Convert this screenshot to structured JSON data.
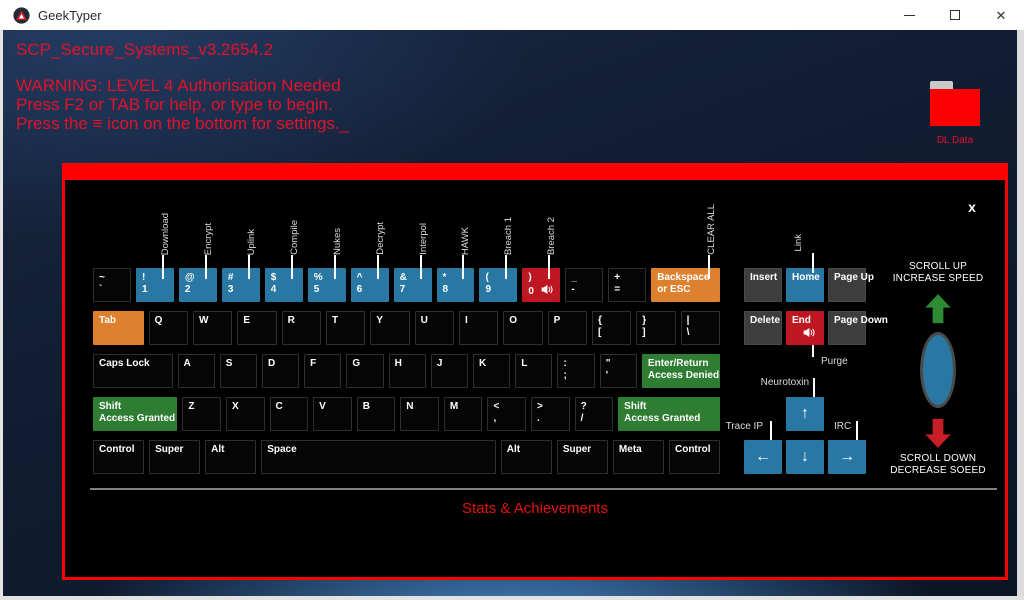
{
  "window": {
    "title": "GeekTyper"
  },
  "screen": {
    "header": "SCP_Secure_Systems_v3.2654.2",
    "warning_lines": [
      "WARNING: LEVEL 4 Authorisation Needed",
      "Press F2 or TAB for help, or type to begin.",
      "Press the ≡ icon on the bottom for settings._"
    ],
    "folder_label": "DL Data"
  },
  "colors": {
    "accent_red": "#ff0000",
    "key_blue": "#2878a3",
    "key_red": "#bf1722",
    "key_orange": "#dd812e",
    "key_green": "#2e7d32",
    "text_red": "#e3112a"
  },
  "overlay": {
    "close_label": "x",
    "stats_title": "Stats & Achievements",
    "scroll": {
      "up_line1": "SCROLL UP",
      "up_line2": "INCREASE SPEED",
      "down_line1": "SCROLL DOWN",
      "down_line2": "DECREASE SOEED"
    },
    "nav_labels": {
      "link": "Link",
      "purge": "Purge",
      "neurotoxin": "Neurotoxin",
      "trace_ip": "Trace IP",
      "irc": "IRC"
    },
    "keyboard": {
      "rows": [
        {
          "keys": [
            {
              "top": "~",
              "bottom": "`",
              "w": 1
            },
            {
              "top": "!",
              "bottom": "1",
              "w": 1,
              "color": "blue",
              "tag": "Download"
            },
            {
              "top": "@",
              "bottom": "2",
              "w": 1,
              "color": "blue",
              "tag": "Encrypt"
            },
            {
              "top": "#",
              "bottom": "3",
              "w": 1,
              "color": "blue",
              "tag": "Uplink"
            },
            {
              "top": "$",
              "bottom": "4",
              "w": 1,
              "color": "blue",
              "tag": "Compile"
            },
            {
              "top": "%",
              "bottom": "5",
              "w": 1,
              "color": "blue",
              "tag": "Nukes"
            },
            {
              "top": "^",
              "bottom": "6",
              "w": 1,
              "color": "blue",
              "tag": "Decrypt"
            },
            {
              "top": "&",
              "bottom": "7",
              "w": 1,
              "color": "blue",
              "tag": "Interpol"
            },
            {
              "top": "*",
              "bottom": "8",
              "w": 1,
              "color": "blue",
              "tag": "HAWK"
            },
            {
              "top": "(",
              "bottom": "9",
              "w": 1,
              "color": "blue",
              "tag": "Breach 1"
            },
            {
              "top": ")",
              "bottom": "0",
              "w": 1,
              "color": "red",
              "tag": "Breach 2",
              "speaker": true
            },
            {
              "top": "_",
              "bottom": "-",
              "w": 1
            },
            {
              "top": "+",
              "bottom": "=",
              "w": 1
            },
            {
              "top": "Backspace",
              "bottom": "or ESC",
              "w": 2,
              "color": "orange",
              "tag": "CLEAR ALL"
            }
          ]
        },
        {
          "keys": [
            {
              "top": "Tab",
              "w": 1.35,
              "color": "orange"
            },
            {
              "top": "Q",
              "w": 1
            },
            {
              "top": "W",
              "w": 1
            },
            {
              "top": "E",
              "w": 1
            },
            {
              "top": "R",
              "w": 1
            },
            {
              "top": "T",
              "w": 1
            },
            {
              "top": "Y",
              "w": 1
            },
            {
              "top": "U",
              "w": 1
            },
            {
              "top": "I",
              "w": 1
            },
            {
              "top": "O",
              "w": 1
            },
            {
              "top": "P",
              "w": 1
            },
            {
              "top": "{",
              "bottom": "[",
              "w": 1
            },
            {
              "top": "}",
              "bottom": "]",
              "w": 1
            },
            {
              "top": "|",
              "bottom": "\\",
              "w": 1
            }
          ]
        },
        {
          "keys": [
            {
              "top": "Caps Lock",
              "w": 2.4
            },
            {
              "top": "A",
              "w": 1
            },
            {
              "top": "S",
              "w": 1
            },
            {
              "top": "D",
              "w": 1
            },
            {
              "top": "F",
              "w": 1
            },
            {
              "top": "G",
              "w": 1
            },
            {
              "top": "H",
              "w": 1
            },
            {
              "top": "J",
              "w": 1
            },
            {
              "top": "K",
              "w": 1
            },
            {
              "top": "L",
              "w": 1
            },
            {
              "top": ":",
              "bottom": ";",
              "w": 1
            },
            {
              "top": "\"",
              "bottom": "'",
              "w": 1
            },
            {
              "top": "Enter/Return",
              "bottom": "Access Denied",
              "w": 2.05,
              "color": "green"
            }
          ]
        },
        {
          "keys": [
            {
              "top": "Shift",
              "bottom": "Access Granted",
              "w": 2.45,
              "color": "green"
            },
            {
              "top": "Z",
              "w": 1
            },
            {
              "top": "X",
              "w": 1
            },
            {
              "top": "C",
              "w": 1
            },
            {
              "top": "V",
              "w": 1
            },
            {
              "top": "B",
              "w": 1
            },
            {
              "top": "N",
              "w": 1
            },
            {
              "top": "M",
              "w": 1
            },
            {
              "top": "<",
              "bottom": ",",
              "w": 1
            },
            {
              "top": ">",
              "bottom": ".",
              "w": 1
            },
            {
              "top": "?",
              "bottom": "/",
              "w": 1
            },
            {
              "top": "Shift",
              "bottom": "Access Granted",
              "w": 3.0,
              "color": "green"
            }
          ]
        },
        {
          "keys": [
            {
              "top": "Control",
              "w": 1.2
            },
            {
              "top": "Super",
              "w": 1.2
            },
            {
              "top": "Alt",
              "w": 1.2
            },
            {
              "top": "Space",
              "w": 6.2
            },
            {
              "top": "Alt",
              "w": 1.2
            },
            {
              "top": "Super",
              "w": 1.2
            },
            {
              "top": "Meta",
              "w": 1.2
            },
            {
              "top": "Control",
              "w": 1.2
            }
          ]
        }
      ],
      "nav_rows": [
        [
          {
            "label": "Insert",
            "color": "gray"
          },
          {
            "label": "Home",
            "color": "blue"
          },
          {
            "label": "Page Up",
            "color": "gray"
          }
        ],
        [
          {
            "label": "Delete",
            "color": "gray"
          },
          {
            "label": "End",
            "color": "red",
            "speaker": true
          },
          {
            "label": "Page Down",
            "color": "gray"
          }
        ]
      ],
      "arrow_keys": [
        {
          "glyph": "↑",
          "name": "up",
          "col": 2,
          "row": 1,
          "color": "blue"
        },
        {
          "glyph": "←",
          "name": "left",
          "col": 1,
          "row": 2,
          "color": "blue"
        },
        {
          "glyph": "↓",
          "name": "down",
          "col": 2,
          "row": 2,
          "color": "blue"
        },
        {
          "glyph": "→",
          "name": "right",
          "col": 3,
          "row": 2,
          "color": "blue"
        }
      ]
    }
  }
}
